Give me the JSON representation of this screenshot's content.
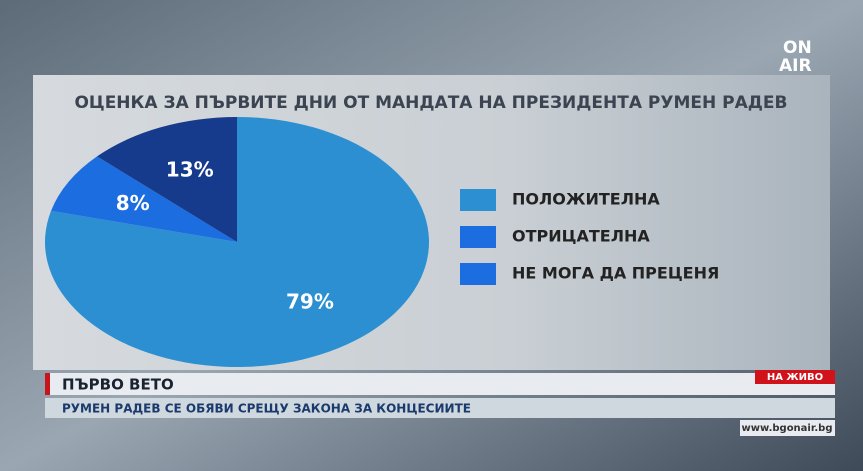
{
  "logo": {
    "line1": "ON",
    "line2": "AIR"
  },
  "chart_data": {
    "type": "pie",
    "title": "ОЦЕНКА ЗА ПЪРВИТЕ ДНИ ОТ МАНДАТА НА ПРЕЗИДЕНТА РУМЕН РАДЕВ",
    "categories": [
      "ПОЛОЖИТЕЛНА",
      "ОТРИЦАТЕЛНА",
      "НЕ МОГА ДА ПРЕЦЕНЯ"
    ],
    "values": [
      79,
      8,
      13
    ],
    "value_labels": [
      "79%",
      "8%",
      "13%"
    ],
    "colors": [
      "#2b8fd2",
      "#1c6ee0",
      "#163a8c"
    ],
    "legend_colors": [
      "#2b8fd2",
      "#1c6ee0",
      "#1c6ee0"
    ]
  },
  "ticker": {
    "headline": "ПЪРВО ВЕТО",
    "subline": "РУМЕН РАДЕВ СЕ ОБЯВИ СРЕЩУ ЗАКОНА ЗА КОНЦЕСИИТЕ",
    "live": "НА ЖИВО",
    "url": "www.bgonair.bg"
  }
}
